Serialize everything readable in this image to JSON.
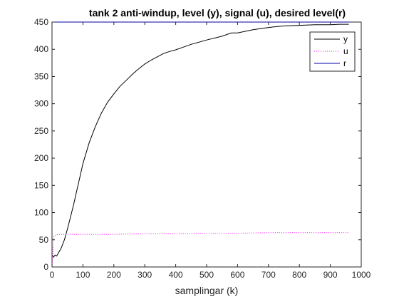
{
  "chart_data": {
    "type": "line",
    "title": "tank 2 anti-windup, level (y), signal (u), desired level(r)",
    "xlabel": "samplingar (k)",
    "ylabel": "",
    "xlim": [
      0,
      1000
    ],
    "ylim": [
      0,
      450
    ],
    "xticks": [
      0,
      100,
      200,
      300,
      400,
      500,
      600,
      700,
      800,
      900,
      1000
    ],
    "yticks": [
      0,
      50,
      100,
      150,
      200,
      250,
      300,
      350,
      400,
      450
    ],
    "grid": false,
    "legend_position": "top-right",
    "series": [
      {
        "name": "y",
        "color": "#000000",
        "style": "solid",
        "x": [
          0,
          5,
          10,
          15,
          20,
          25,
          30,
          40,
          50,
          60,
          70,
          80,
          90,
          100,
          120,
          140,
          160,
          180,
          200,
          220,
          240,
          260,
          280,
          300,
          320,
          340,
          360,
          380,
          400,
          450,
          500,
          550,
          580,
          600,
          650,
          700,
          750,
          800,
          850,
          900,
          930,
          960
        ],
        "y": [
          22,
          18,
          22,
          20,
          25,
          30,
          35,
          50,
          70,
          92,
          115,
          140,
          165,
          190,
          228,
          258,
          283,
          303,
          318,
          332,
          343,
          354,
          364,
          373,
          380,
          386,
          392,
          396,
          399,
          409,
          417,
          424,
          430,
          430,
          436,
          440,
          443,
          444,
          445,
          445,
          446,
          446
        ]
      },
      {
        "name": "u",
        "color": "#ff00ff",
        "style": "dotted",
        "x": [
          0,
          5,
          10,
          20,
          50,
          100,
          150,
          200,
          300,
          400,
          500,
          600,
          700,
          800,
          900,
          960
        ],
        "y": [
          0,
          55,
          58,
          60,
          60,
          60,
          60,
          60,
          61,
          61,
          62,
          62,
          63,
          63,
          63,
          63
        ]
      },
      {
        "name": "r",
        "color": "#0000aa",
        "style": "solid",
        "x": [
          0,
          960
        ],
        "y": [
          450,
          450
        ]
      }
    ]
  }
}
